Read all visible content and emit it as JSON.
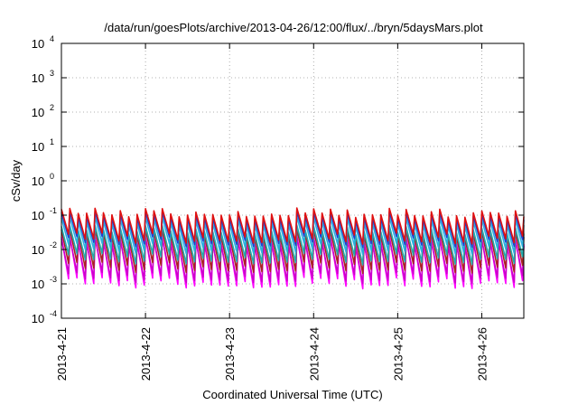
{
  "chart_data": {
    "type": "line",
    "title": "/data/run/goesPlots/archive/2013-04-26/12:00/flux/../bryn/5daysMars.plot",
    "xlabel": "Coordinated Universal Time (UTC)",
    "ylabel": "cSv/day",
    "y_scale": "log",
    "ylim_exponents": [
      -4,
      4
    ],
    "y_ticks": [
      {
        "base": "10",
        "exp": "-4"
      },
      {
        "base": "10",
        "exp": "-3"
      },
      {
        "base": "10",
        "exp": "-2"
      },
      {
        "base": "10",
        "exp": "-1"
      },
      {
        "base": "10",
        "exp": "0"
      },
      {
        "base": "10",
        "exp": "1"
      },
      {
        "base": "10",
        "exp": "2"
      },
      {
        "base": "10",
        "exp": "3"
      },
      {
        "base": "10",
        "exp": "4"
      }
    ],
    "x_ticks": [
      "2013-4-21",
      "2013-4-22",
      "2013-4-23",
      "2013-4-24",
      "2013-4-25",
      "2013-4-26"
    ],
    "x_range_days": [
      0,
      5.5
    ],
    "grid": true,
    "sawtooth_period_days": 0.1,
    "series": [
      {
        "color": "#ff00ff",
        "peak_log": -1.75,
        "trough_log": -3.0
      },
      {
        "color": "#cc00cc",
        "peak_log": -1.8,
        "trough_log": -2.85
      },
      {
        "color": "#aa2222",
        "peak_log": -1.55,
        "trough_log": -2.55
      },
      {
        "color": "#22aaaa",
        "peak_log": -1.45,
        "trough_log": -2.3
      },
      {
        "color": "#2ab0e0",
        "peak_log": -1.2,
        "trough_log": -2.0
      },
      {
        "color": "#1f3fcf",
        "peak_log": -1.05,
        "trough_log": -1.8
      },
      {
        "color": "#e01010",
        "peak_log": -0.95,
        "trough_log": -1.7
      }
    ]
  }
}
